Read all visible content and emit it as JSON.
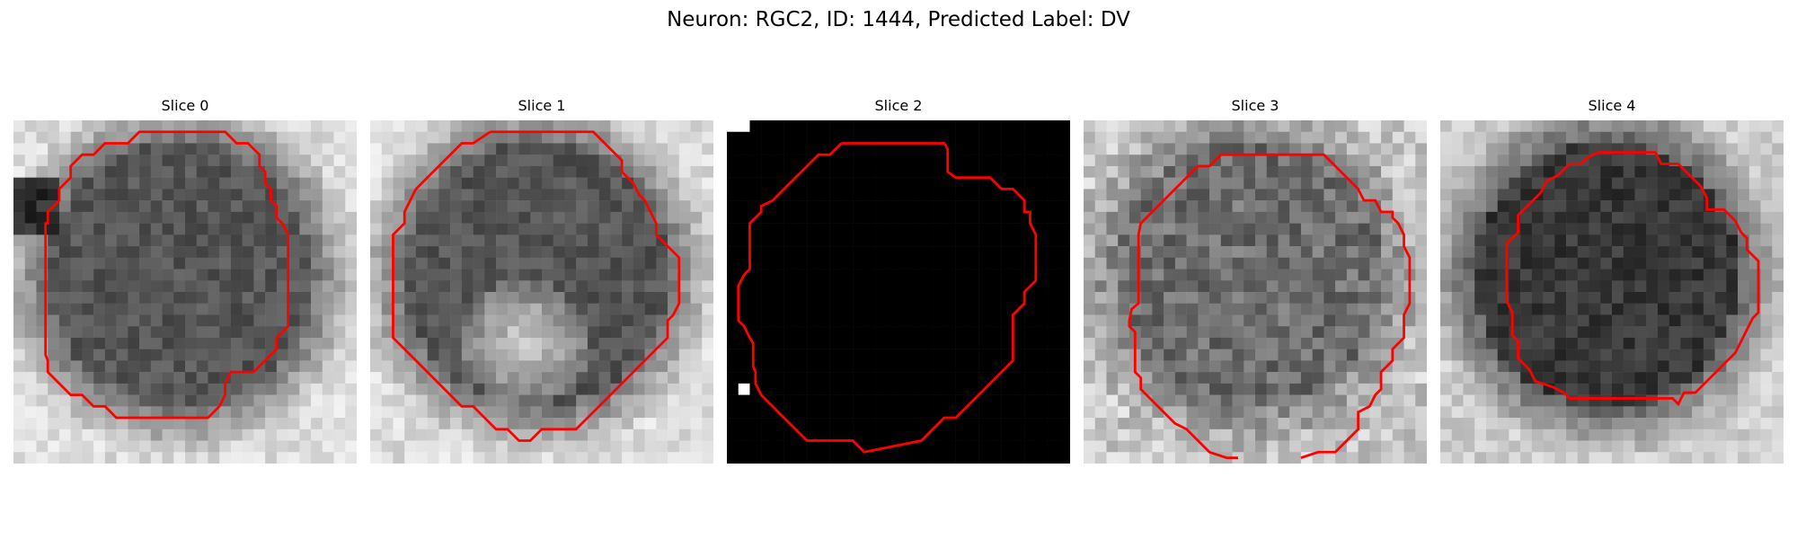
{
  "figure": {
    "title": "Neuron: RGC2, ID: 1444, Predicted Label: DV"
  },
  "panels": [
    {
      "title": "Slice 0",
      "style": "grayscale-cell",
      "seed": 11,
      "contour_color": "#ff0000"
    },
    {
      "title": "Slice 1",
      "style": "grayscale-cell-bright-center",
      "seed": 23,
      "contour_color": "#ff0000"
    },
    {
      "title": "Slice 2",
      "style": "black-mask",
      "seed": 0,
      "contour_color": "#ff0000"
    },
    {
      "title": "Slice 3",
      "style": "grayscale-cell-noisy",
      "seed": 37,
      "contour_color": "#ff0000"
    },
    {
      "title": "Slice 4",
      "style": "grayscale-cell-dark",
      "seed": 51,
      "contour_color": "#ff0000"
    }
  ]
}
